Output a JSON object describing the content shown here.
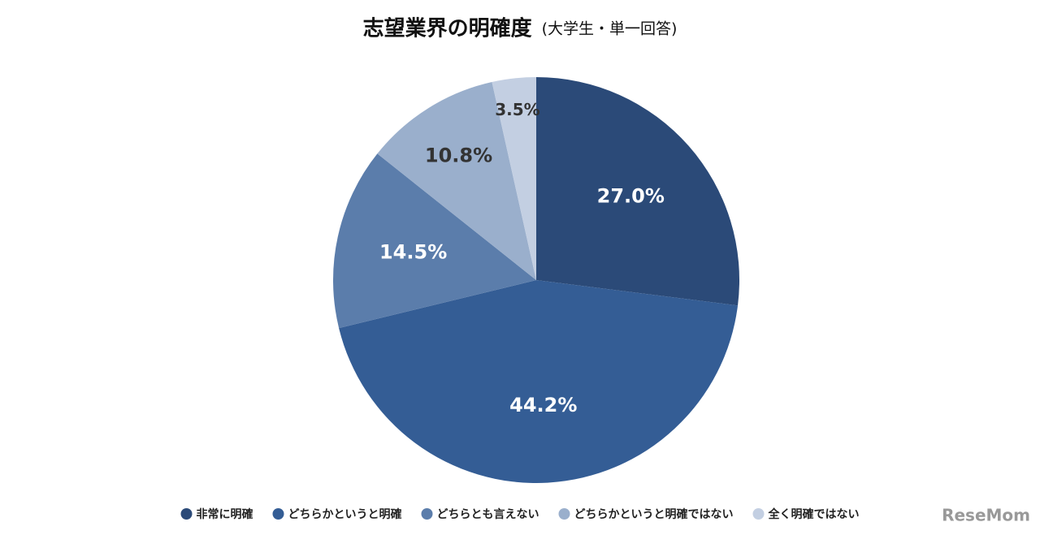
{
  "chart_data": {
    "type": "pie",
    "title": "志望業界の明確度",
    "subtitle": "(大学生・単一回答)",
    "categories": [
      "非常に明確",
      "どちらかというと明確",
      "どちらとも言えない",
      "どちらかというと明確ではない",
      "全く明確ではない"
    ],
    "values": [
      27.0,
      44.2,
      14.5,
      10.8,
      3.5
    ],
    "value_labels": [
      "27.0%",
      "44.2%",
      "14.5%",
      "10.8%",
      "3.5%"
    ],
    "colors": [
      "#2b4a78",
      "#345d95",
      "#5b7dab",
      "#9aafcc",
      "#c3cfe2"
    ],
    "legend": "bottom"
  },
  "watermark": "ReseMom"
}
